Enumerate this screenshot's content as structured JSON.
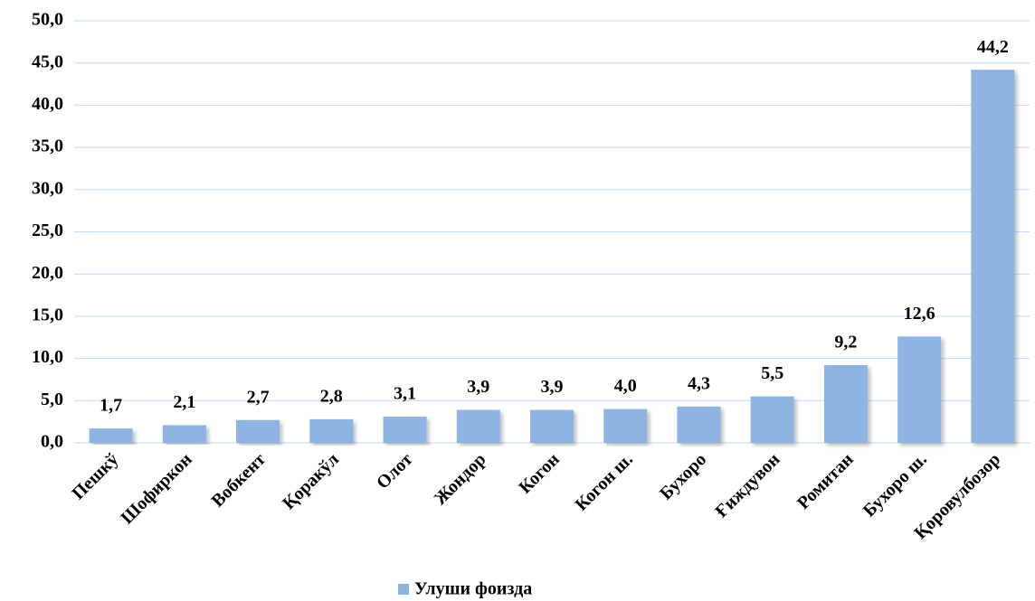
{
  "chart_data": {
    "type": "bar",
    "categories": [
      "Пешкў",
      "Шофиркон",
      "Вобкент",
      "Қоракўл",
      "Олот",
      "Жондор",
      "Когон",
      "Когон ш.",
      "Бухоро",
      "Ғиждувон",
      "Ромитан",
      "Бухоро ш.",
      "Қоровулбозор"
    ],
    "series": [
      {
        "name": "Улуши фоизда",
        "color": "#8db4e3",
        "values": [
          1.7,
          2.1,
          2.7,
          2.8,
          3.1,
          3.9,
          3.9,
          4.0,
          4.3,
          5.5,
          9.2,
          12.6,
          44.2
        ],
        "value_labels": [
          "1,7",
          "2,1",
          "2,7",
          "2,8",
          "3,1",
          "3,9",
          "3,9",
          "4,0",
          "4,3",
          "5,5",
          "9,2",
          "12,6",
          "44,2"
        ]
      }
    ],
    "ylim": [
      0,
      50
    ],
    "yticks": [
      {
        "value": 0,
        "label": "0,0"
      },
      {
        "value": 5,
        "label": "5,0"
      },
      {
        "value": 10,
        "label": "10,0"
      },
      {
        "value": 15,
        "label": "15,0"
      },
      {
        "value": 20,
        "label": "20,0"
      },
      {
        "value": 25,
        "label": "25,0"
      },
      {
        "value": 30,
        "label": "30,0"
      },
      {
        "value": 35,
        "label": "35,0"
      },
      {
        "value": 40,
        "label": "40,0"
      },
      {
        "value": 45,
        "label": "45,0"
      },
      {
        "value": 50,
        "label": "50,0"
      }
    ],
    "grid": true,
    "legend": "bottom"
  }
}
